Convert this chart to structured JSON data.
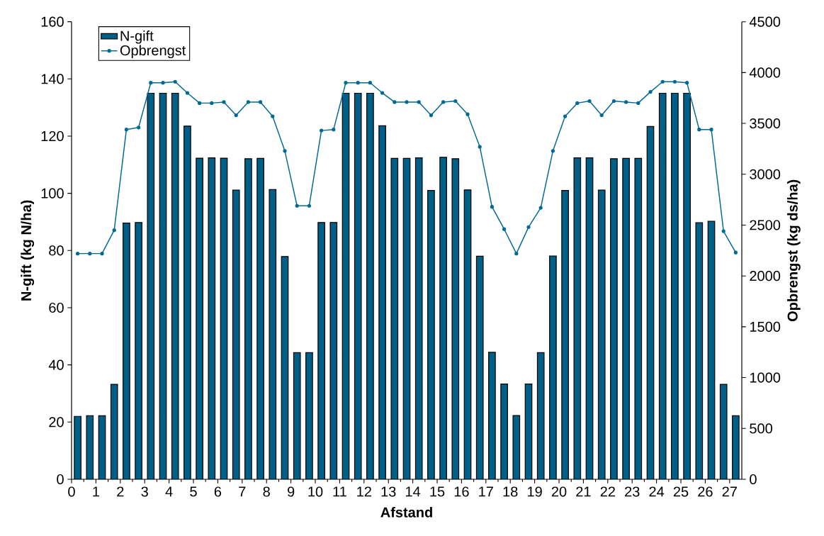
{
  "chart_data": {
    "type": "bar",
    "xlabel": "Afstand",
    "ylabel": "N-gift (kg N/ha)",
    "y2label": "Opbrengst (kg ds/ha)",
    "x": [
      0.25,
      0.75,
      1.25,
      1.75,
      2.25,
      2.75,
      3.25,
      3.75,
      4.25,
      4.75,
      5.25,
      5.75,
      6.25,
      6.75,
      7.25,
      7.75,
      8.25,
      8.75,
      9.25,
      9.75,
      10.25,
      10.75,
      11.25,
      11.75,
      12.25,
      12.75,
      13.25,
      13.75,
      14.25,
      14.75,
      15.25,
      15.75,
      16.25,
      16.75,
      17.25,
      17.75,
      18.25,
      18.75,
      19.25,
      19.75,
      20.25,
      20.75,
      21.25,
      21.75,
      22.25,
      22.75,
      23.25,
      23.75,
      24.25,
      24.75,
      25.25,
      25.75,
      26.25,
      26.75,
      27.25
    ],
    "series": [
      {
        "name": "N-gift",
        "color": "#005f86",
        "values": [
          22,
          22.2,
          22.2,
          33.2,
          89.6,
          89.8,
          135,
          135,
          135,
          123.5,
          112.3,
          112.4,
          112.3,
          101.1,
          112.1,
          112.2,
          101.3,
          77.9,
          44.3,
          44.3,
          89.8,
          89.8,
          135,
          135,
          135,
          123.6,
          112.2,
          112.2,
          112.4,
          101,
          112.6,
          112.1,
          101.2,
          78,
          44.4,
          33.3,
          22.3,
          33.3,
          44.3,
          78.1,
          101,
          112.4,
          112.4,
          101.1,
          112.1,
          112.2,
          112.2,
          123.4,
          135,
          135,
          135,
          89.7,
          90.2,
          33.2,
          22.2
        ]
      },
      {
        "name": "Opbrengst",
        "type": "line",
        "axis": "y2",
        "color": "#006a94",
        "marker": "circle",
        "values": [
          2220,
          2220,
          2220,
          2450,
          3440,
          3460,
          3900,
          3900,
          3910,
          3800,
          3700,
          3700,
          3710,
          3580,
          3710,
          3710,
          3570,
          3230,
          2690,
          2690,
          3430,
          3440,
          3900,
          3900,
          3900,
          3800,
          3710,
          3710,
          3710,
          3580,
          3710,
          3720,
          3590,
          3270,
          2680,
          2460,
          2220,
          2480,
          2670,
          3230,
          3570,
          3700,
          3720,
          3580,
          3720,
          3710,
          3700,
          3810,
          3910,
          3910,
          3900,
          3440,
          3440,
          2440,
          2230
        ]
      }
    ],
    "xlim": [
      0,
      27.5
    ],
    "xticks": [
      0,
      1,
      2,
      3,
      4,
      5,
      6,
      7,
      8,
      9,
      10,
      11,
      12,
      13,
      14,
      15,
      16,
      17,
      18,
      19,
      20,
      21,
      22,
      23,
      24,
      25,
      26,
      27
    ],
    "ylim": [
      0,
      160
    ],
    "yticks": [
      0,
      20,
      40,
      60,
      80,
      100,
      120,
      140,
      160
    ],
    "y2lim": [
      0,
      4500
    ],
    "y2ticks": [
      0,
      500,
      1000,
      1500,
      2000,
      2500,
      3000,
      3500,
      4000,
      4500
    ],
    "grid": false,
    "legend": "top left"
  }
}
